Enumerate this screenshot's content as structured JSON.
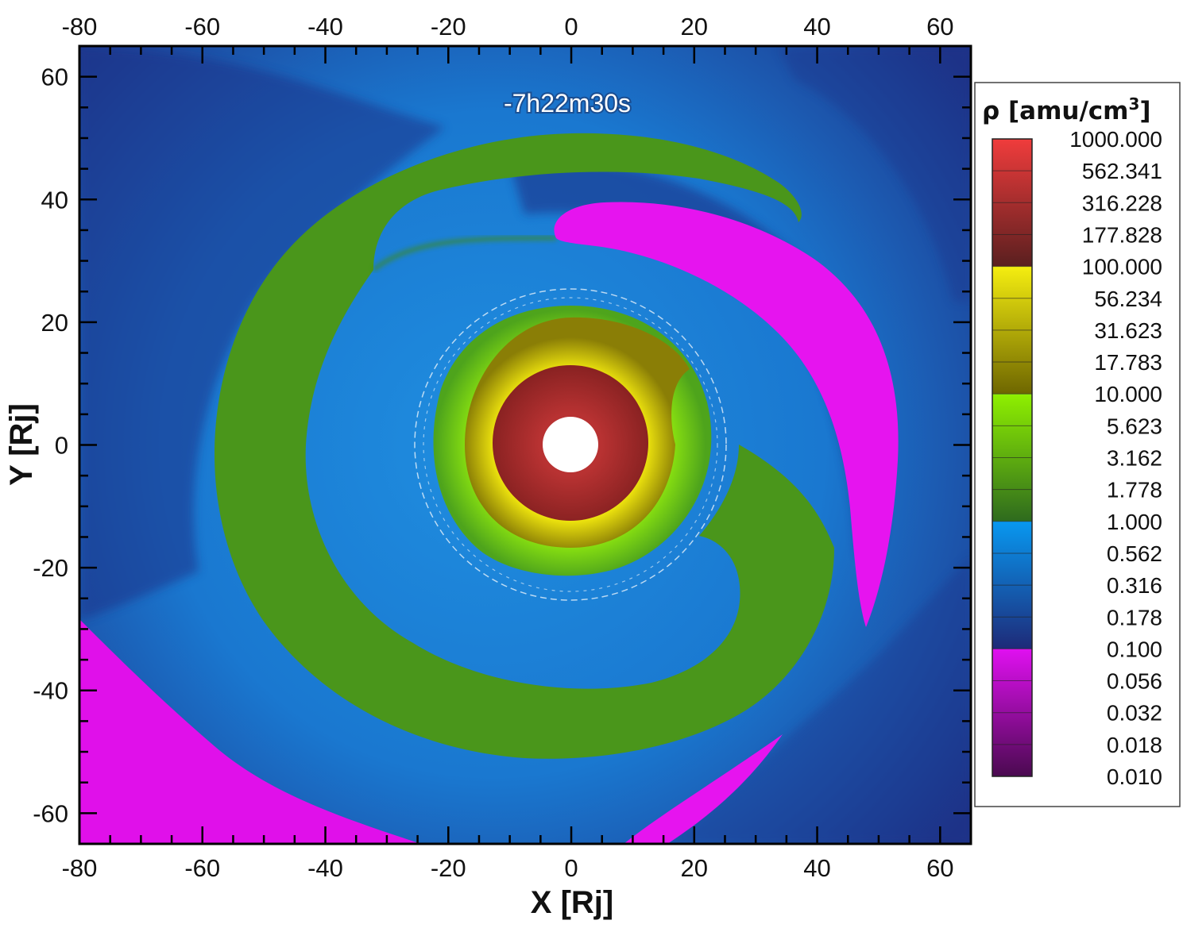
{
  "chart_data": {
    "type": "heatmap",
    "title": "",
    "time_label": "-7h22m30s",
    "xlabel": "X [Rj]",
    "ylabel": "Y [Rj]",
    "xlim": [
      -80,
      65
    ],
    "ylim": [
      -65,
      65
    ],
    "x_ticks": [
      "-80",
      "-60",
      "-40",
      "-20",
      "0",
      "20",
      "40",
      "60"
    ],
    "y_ticks": [
      "60",
      "40",
      "20",
      "0",
      "-20",
      "-40",
      "-60"
    ],
    "x_tick_values": [
      -80,
      -60,
      -40,
      -20,
      0,
      20,
      40,
      60
    ],
    "y_tick_values": [
      60,
      40,
      20,
      0,
      -20,
      -40,
      -60
    ],
    "colorbar": {
      "title": "ρ [amu/cm",
      "title_sup": "3",
      "title_end": "]",
      "placement": "right",
      "scale": "log",
      "labels": [
        "1000.000",
        "562.341",
        "316.228",
        "177.828",
        "100.000",
        "56.234",
        "31.623",
        "17.783",
        "10.000",
        "5.623",
        "3.162",
        "1.778",
        "1.000",
        "0.562",
        "0.316",
        "0.178",
        "0.100",
        "0.056",
        "0.032",
        "0.018",
        "0.010"
      ],
      "bands": [
        {
          "from": 100,
          "to": 1000,
          "color_low": "#5a1f1f",
          "color_high": "#f03c3c"
        },
        {
          "from": 10,
          "to": 100,
          "color_low": "#6e6600",
          "color_high": "#f5ee10"
        },
        {
          "from": 1,
          "to": 10,
          "color_low": "#2e6a1e",
          "color_high": "#8ff000"
        },
        {
          "from": 0.1,
          "to": 1,
          "color_low": "#1e2a78",
          "color_high": "#0898f0"
        },
        {
          "from": 0.01,
          "to": 0.1,
          "color_low": "#4a0a50",
          "color_high": "#e010f0"
        }
      ]
    },
    "center_values": {
      "inner_hole": "none",
      "torus_density": 316.228
    },
    "colors": {
      "background_blue": "#1f8ee0",
      "dark_blue": "#1e3388",
      "green": "#4f9a1c",
      "yellow": "#d8cf08",
      "red": "#b83232",
      "magenta": "#e614ef"
    }
  }
}
